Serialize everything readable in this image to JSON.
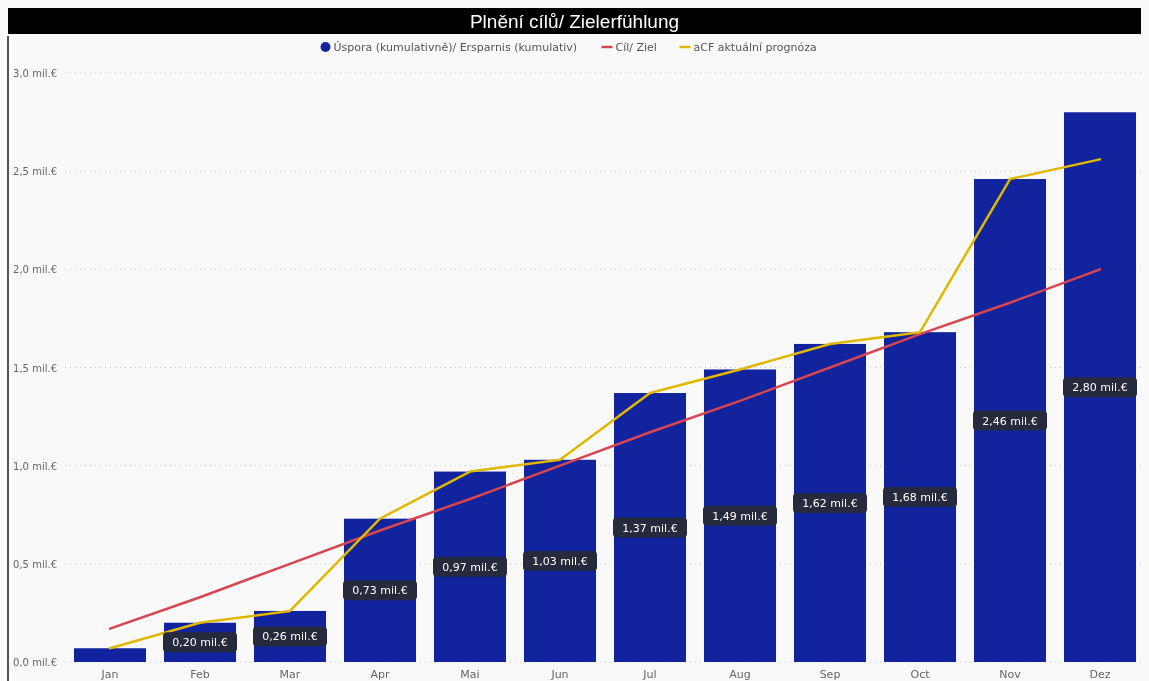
{
  "chart_data": {
    "type": "bar",
    "title": "Plnění cílů/ Zielerfühlung",
    "categories": [
      "Jan",
      "Feb",
      "Mar",
      "Apr",
      "Mai",
      "Jun",
      "Jul",
      "Aug",
      "Sep",
      "Oct",
      "Nov",
      "Dez"
    ],
    "series": [
      {
        "name": "Úspora (kumulativně)/ Ersparnis (kumulativ)",
        "color": "#12239e",
        "values": [
          0.07,
          0.2,
          0.26,
          0.73,
          0.97,
          1.03,
          1.37,
          1.49,
          1.62,
          1.68,
          2.46,
          2.8
        ],
        "value_labels": [
          null,
          "0,20 mil.€",
          "0,26 mil.€",
          "0,73 mil.€",
          "0,97 mil.€",
          "1,03 mil.€",
          "1,37 mil.€",
          "1,49 mil.€",
          "1,62 mil.€",
          "1,68 mil.€",
          "2,46 mil.€",
          "2,80 mil.€"
        ]
      },
      {
        "name": "Cíl/ Ziel",
        "type": "line",
        "color": "#d64550",
        "values": [
          0.17,
          0.33,
          0.5,
          0.67,
          0.83,
          1.0,
          1.17,
          1.33,
          1.5,
          1.67,
          1.83,
          2.0
        ]
      },
      {
        "name": "aCF aktuální prognóza",
        "type": "line",
        "color": "#e0b800",
        "values": [
          0.07,
          0.2,
          0.26,
          0.73,
          0.97,
          1.03,
          1.37,
          1.49,
          1.62,
          1.68,
          2.46,
          2.56
        ]
      }
    ],
    "ylim": [
      0,
      3
    ],
    "yticks": [
      {
        "value": 0,
        "label": "0,0 mil.€"
      },
      {
        "value": 0.5,
        "label": "0,5 mil.€"
      },
      {
        "value": 1,
        "label": "1,0 mil.€"
      },
      {
        "value": 1.5,
        "label": "1,5 mil.€"
      },
      {
        "value": 2,
        "label": "2,0 mil.€"
      },
      {
        "value": 2.5,
        "label": "2,5 mil.€"
      },
      {
        "value": 3,
        "label": "3,0 mil.€"
      }
    ],
    "grid": "y",
    "legend": "top",
    "marker": "none",
    "line_style": "solid"
  }
}
